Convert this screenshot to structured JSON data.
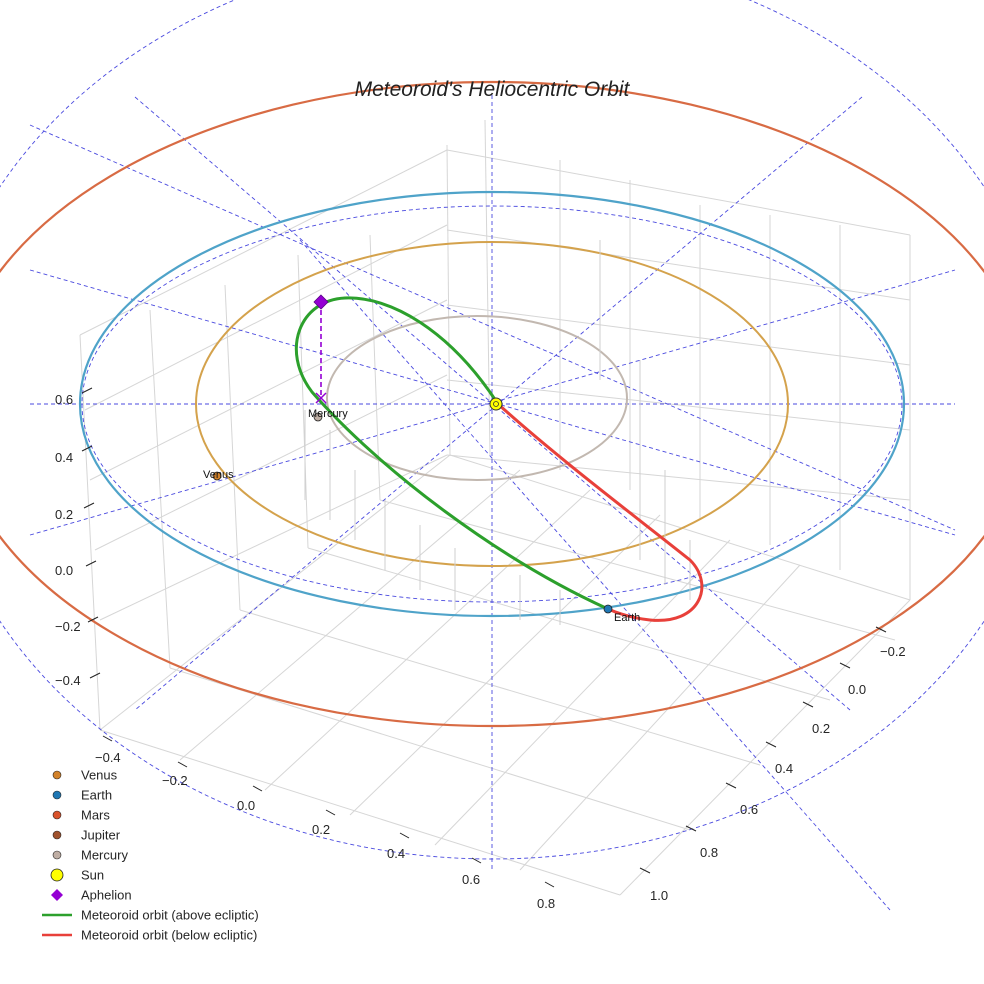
{
  "chart_data": {
    "type": "line",
    "title": "Meteoroid's Heliocentric Orbit",
    "axes": {
      "z_ticks": [
        "0.6",
        "0.4",
        "0.2",
        "0.0",
        "−0.2",
        "−0.4"
      ],
      "x_ticks": [
        "−0.4",
        "−0.2",
        "0.0",
        "0.2",
        "0.4",
        "0.6",
        "0.8"
      ],
      "y_ticks": [
        "−0.2",
        "0.0",
        "0.2",
        "0.4",
        "0.6",
        "0.8",
        "1.0"
      ]
    },
    "bodies": [
      {
        "name": "Venus",
        "label": "Venus",
        "color": "#d2822a"
      },
      {
        "name": "Earth",
        "label": "Earth",
        "color": "#1f77b4"
      },
      {
        "name": "Mercury",
        "label": "Mercury",
        "color": "#bfaea4"
      },
      {
        "name": "Sun",
        "label": "",
        "color": "#ffff00"
      }
    ],
    "aphelion": {
      "label": "Aphelion",
      "color": "#9400d3"
    },
    "series": [
      {
        "name": "Meteoroid orbit (above ecliptic)",
        "color": "#2ca02c"
      },
      {
        "name": "Meteoroid orbit (below ecliptic)",
        "color": "#e8403a"
      }
    ],
    "orbit_colors": {
      "mercury": "#c2b8b0",
      "venus": "#d4a24c",
      "earth": "#4fa3c9",
      "mars": "#d86b44",
      "guide": "#4a4adf"
    },
    "legend": [
      {
        "label": "Venus",
        "marker": "circle",
        "color": "#d2822a"
      },
      {
        "label": "Earth",
        "marker": "circle",
        "color": "#1f77b4"
      },
      {
        "label": "Mars",
        "marker": "circle",
        "color": "#d9532c"
      },
      {
        "label": "Jupiter",
        "marker": "circle",
        "color": "#a0522d"
      },
      {
        "label": "Mercury",
        "marker": "circle",
        "color": "#bfaea4"
      },
      {
        "label": "Sun",
        "marker": "circle-large",
        "color": "#ffff00"
      },
      {
        "label": "Aphelion",
        "marker": "diamond",
        "color": "#9400d3"
      },
      {
        "label": "Meteoroid orbit (above ecliptic)",
        "marker": "line",
        "color": "#2ca02c"
      },
      {
        "label": "Meteoroid orbit (below ecliptic)",
        "marker": "line",
        "color": "#e8403a"
      }
    ]
  }
}
